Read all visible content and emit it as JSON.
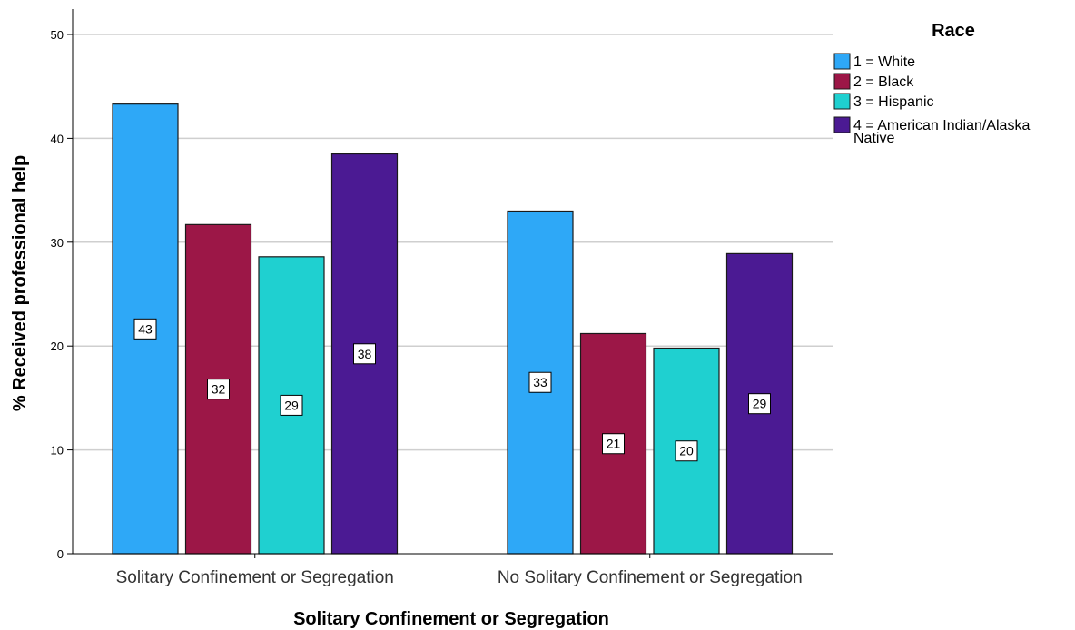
{
  "chart_data": {
    "type": "bar",
    "categories": [
      "Solitary Confinement or Segregation",
      "No Solitary Confinement or Segregation"
    ],
    "series": [
      {
        "name": "1 = White",
        "values": [
          43.3,
          33.0
        ],
        "labels": [
          "43",
          "33"
        ],
        "color": "#2ea8f7"
      },
      {
        "name": "2 = Black",
        "values": [
          31.7,
          21.2
        ],
        "labels": [
          "32",
          "21"
        ],
        "color": "#9c1747"
      },
      {
        "name": "3 = Hispanic",
        "values": [
          28.6,
          19.8
        ],
        "labels": [
          "29",
          "20"
        ],
        "color": "#1fd0d0"
      },
      {
        "name": "4 = American Indian/Alaska Native",
        "values": [
          38.5,
          28.9
        ],
        "labels": [
          "38",
          "29"
        ],
        "color": "#4b1a93"
      }
    ],
    "xlabel": "Solitary Confinement or Segregation",
    "ylabel": "% Received professional help",
    "ylim": [
      0,
      52
    ],
    "yticks": [
      "0",
      "10",
      "20",
      "30",
      "40",
      "50"
    ],
    "legend_title": "Race",
    "legend_lines": [
      [
        "1 = White"
      ],
      [
        "2 = Black"
      ],
      [
        "3 = Hispanic"
      ],
      [
        "4 = American Indian/Alaska",
        "Native"
      ]
    ],
    "legend_position": "top-right",
    "grid": true,
    "gridline_color": "#cfcfcf"
  }
}
